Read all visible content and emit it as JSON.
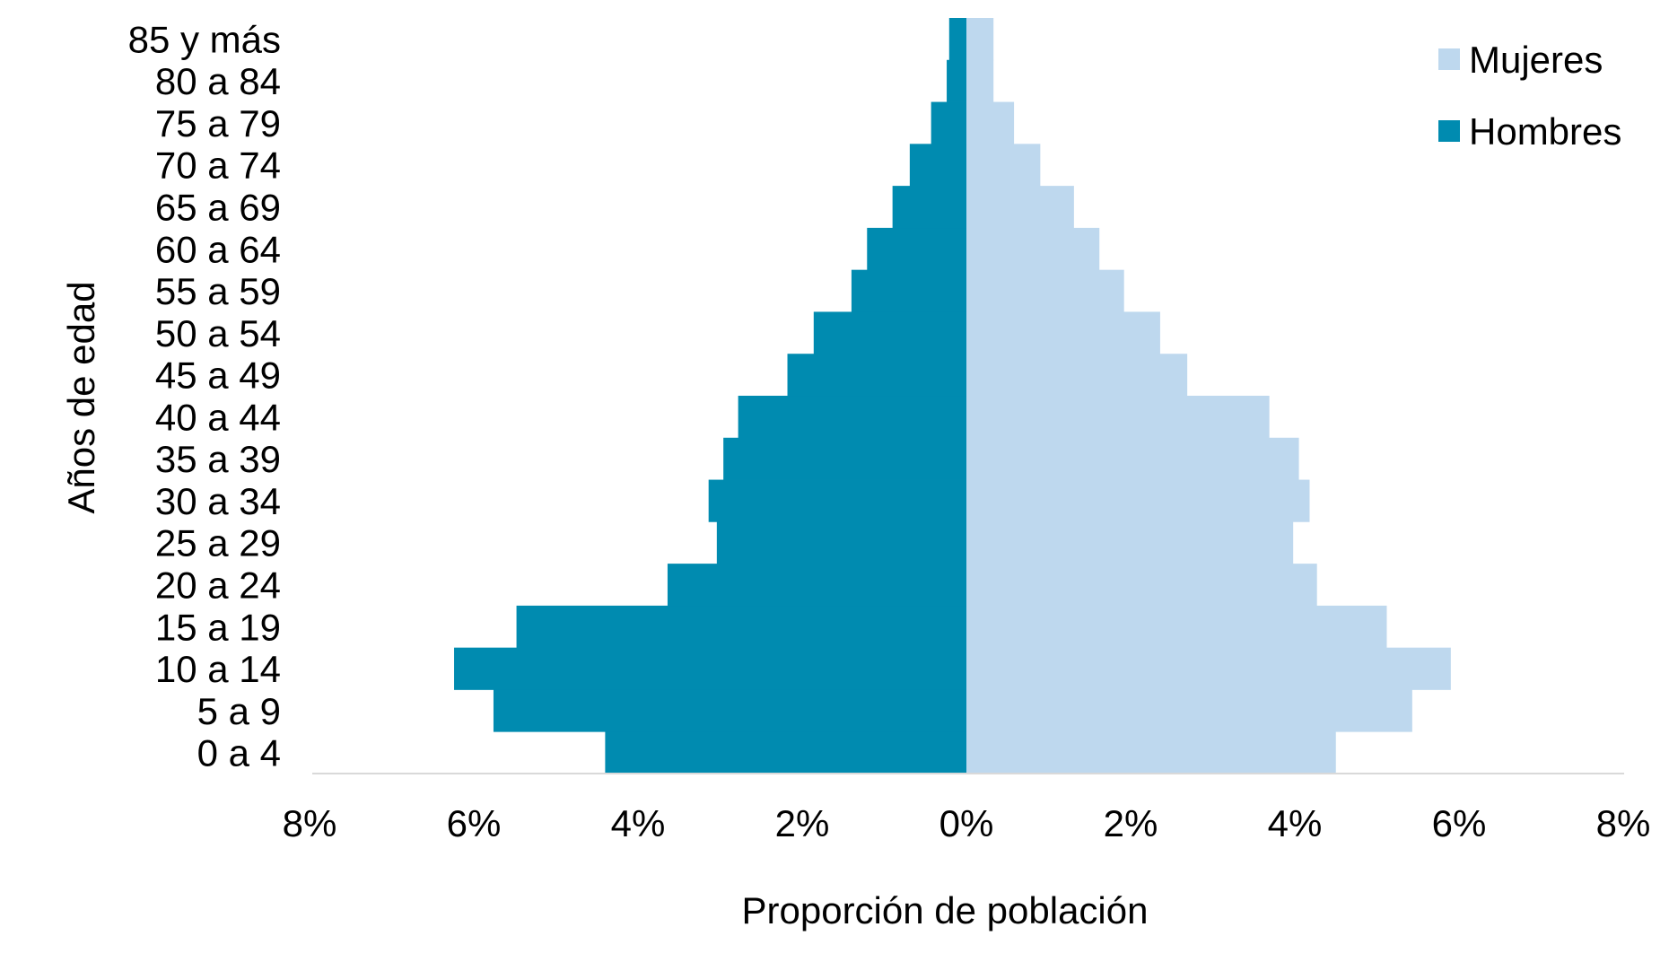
{
  "chart_data": {
    "type": "bar",
    "orientation": "horizontal",
    "layout": "population-pyramid",
    "categories": [
      "0 a 4",
      "5 a 9",
      "10 a 14",
      "15 a 19",
      "20 a 24",
      "25 a 29",
      "30 a 34",
      "35 a 39",
      "40 a 44",
      "45 a 49",
      "50 a 54",
      "55 a 59",
      "60 a 64",
      "65 a 69",
      "70 a 74",
      "75 a 79",
      "80 a 84",
      "85 y más"
    ],
    "series": [
      {
        "name": "Hombres",
        "side": "left",
        "color": "#008bb0",
        "values": [
          4.4,
          5.76,
          6.24,
          5.48,
          3.64,
          3.04,
          3.14,
          2.96,
          2.78,
          2.18,
          1.86,
          1.4,
          1.21,
          0.9,
          0.69,
          0.43,
          0.24,
          0.21
        ]
      },
      {
        "name": "Mujeres",
        "side": "right",
        "color": "#bed8ee",
        "values": [
          4.5,
          5.43,
          5.9,
          5.12,
          4.27,
          3.98,
          4.18,
          4.05,
          3.69,
          2.69,
          2.36,
          1.92,
          1.62,
          1.31,
          0.9,
          0.58,
          0.33,
          0.33
        ]
      }
    ],
    "xlim": [
      -8,
      8
    ],
    "xticks": [
      "8%",
      "6%",
      "4%",
      "2%",
      "0%",
      "2%",
      "4%",
      "6%",
      "8%"
    ],
    "xlabel": "Proporción de población",
    "ylabel": "Años de edad",
    "legend": {
      "position": "top-right",
      "entries": [
        "Mujeres",
        "Hombres"
      ]
    },
    "grid": false
  }
}
